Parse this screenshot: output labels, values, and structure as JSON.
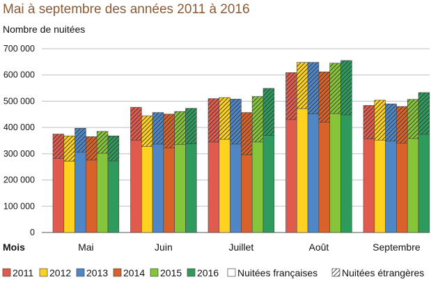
{
  "chart_data": {
    "type": "bar",
    "stacked": true,
    "title": "Mai à septembre des années 2011 à 2016",
    "ylabel": "Nombre de nuitées",
    "xlabel": "Mois",
    "ylim": [
      0,
      700000
    ],
    "yticks": [
      0,
      100000,
      200000,
      300000,
      400000,
      500000,
      600000,
      700000
    ],
    "ytick_labels": [
      "0",
      "100 000",
      "200 000",
      "300 000",
      "400 000",
      "500 000",
      "600 000",
      "700 000"
    ],
    "grid": true,
    "categories": [
      "Mai",
      "Juin",
      "Juillet",
      "Août",
      "Septembre"
    ],
    "series": [
      {
        "name": "2011",
        "color": "#e05a4e",
        "francaises": [
          282000,
          352000,
          345000,
          430000,
          357000
        ],
        "total": [
          375000,
          477000,
          510000,
          609000,
          484000
        ]
      },
      {
        "name": "2012",
        "color": "#ffd21f",
        "francaises": [
          272000,
          328000,
          355000,
          472000,
          352000
        ],
        "total": [
          368000,
          444000,
          514000,
          648000,
          504000
        ]
      },
      {
        "name": "2013",
        "color": "#4f86c6",
        "francaises": [
          306000,
          337000,
          337000,
          452000,
          348000
        ],
        "total": [
          397000,
          457000,
          508000,
          648000,
          490000
        ]
      },
      {
        "name": "2014",
        "color": "#d9622b",
        "francaises": [
          276000,
          322000,
          296000,
          420000,
          340000
        ],
        "total": [
          365000,
          451000,
          457000,
          612000,
          480000
        ]
      },
      {
        "name": "2015",
        "color": "#86c53a",
        "francaises": [
          302000,
          336000,
          345000,
          453000,
          358000
        ],
        "total": [
          385000,
          461000,
          518000,
          645000,
          507000
        ]
      },
      {
        "name": "2016",
        "color": "#2e9a5c",
        "francaises": [
          273000,
          338000,
          370000,
          448000,
          374000
        ],
        "total": [
          368000,
          473000,
          549000,
          655000,
          533000
        ]
      }
    ],
    "legend": {
      "placement": "bottom",
      "items": [
        "2011",
        "2012",
        "2013",
        "2014",
        "2015",
        "2016"
      ],
      "francaises_label": "Nuitées françaises",
      "etrangeres_label": "Nuitées étrangères"
    }
  }
}
